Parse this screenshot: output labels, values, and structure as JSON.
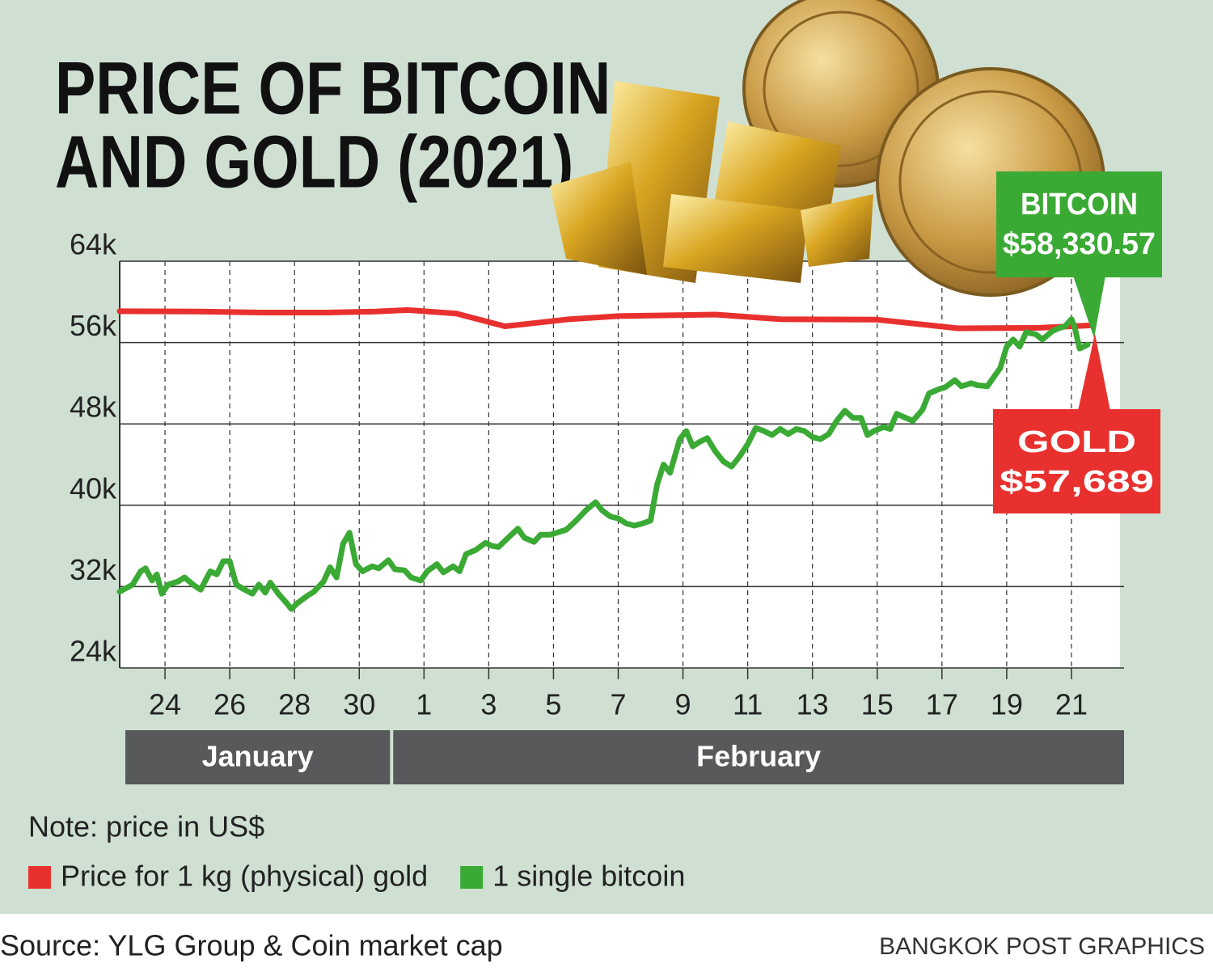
{
  "chart_data": {
    "type": "line",
    "title": [
      "PRICE OF BITCOIN",
      "AND GOLD (2021)"
    ],
    "note": "Note: price in US$",
    "source": "Source: YLG Group & Coin market cap",
    "credit": "BANGKOK POST GRAPHICS",
    "months": [
      "January",
      "February"
    ],
    "xlim": [
      22.6,
      53.5
    ],
    "xticks": [
      24,
      26,
      28,
      30,
      {
        "value": 32,
        "label": "1"
      },
      {
        "value": 34,
        "label": "3"
      },
      {
        "value": 36,
        "label": "5"
      },
      {
        "value": 38,
        "label": "7"
      },
      {
        "value": 40,
        "label": "9"
      },
      {
        "value": 42,
        "label": "11"
      },
      {
        "value": 44,
        "label": "13"
      },
      {
        "value": 46,
        "label": "15"
      },
      {
        "value": 48,
        "label": "17"
      },
      {
        "value": 50,
        "label": "19"
      },
      {
        "value": 52,
        "label": "21"
      }
    ],
    "ylim": [
      24000,
      64000
    ],
    "yticks": [
      {
        "value": 24000,
        "label": "24k"
      },
      {
        "value": 32000,
        "label": "32k"
      },
      {
        "value": 40000,
        "label": "40k"
      },
      {
        "value": 48000,
        "label": "48k"
      },
      {
        "value": 56000,
        "label": "56k"
      },
      {
        "value": 64000,
        "label": "64k"
      }
    ],
    "grid": true,
    "series": [
      {
        "name": "Price for 1 kg (physical) gold",
        "color": "#e8312f",
        "x": [
          22.6,
          25,
          27,
          29,
          30.5,
          31.5,
          33,
          34.5,
          36.5,
          38,
          41,
          43,
          46,
          48.5,
          51,
          52.6
        ],
        "values": [
          59080,
          59050,
          58950,
          58950,
          59050,
          59200,
          58850,
          57600,
          58300,
          58600,
          58750,
          58300,
          58250,
          57400,
          57450,
          57689
        ]
      },
      {
        "name": "1 single bitcoin",
        "color": "#3aaa35",
        "x": [
          22.6,
          23.0,
          23.25,
          23.4,
          23.6,
          23.75,
          23.9,
          24.1,
          24.4,
          24.6,
          24.9,
          25.1,
          25.4,
          25.6,
          25.8,
          26.0,
          26.2,
          26.4,
          26.7,
          26.9,
          27.1,
          27.25,
          27.5,
          27.75,
          27.9,
          28.1,
          28.4,
          28.6,
          28.9,
          29.1,
          29.3,
          29.5,
          29.7,
          29.9,
          30.1,
          30.4,
          30.6,
          30.9,
          31.1,
          31.4,
          31.6,
          31.9,
          32.1,
          32.4,
          32.6,
          32.9,
          33.1,
          33.3,
          33.6,
          33.9,
          34.1,
          34.3,
          34.6,
          34.9,
          35.1,
          35.4,
          35.6,
          35.9,
          36.1,
          36.4,
          36.7,
          37.0,
          37.3,
          37.5,
          37.75,
          38.0,
          38.25,
          38.5,
          38.75,
          39.0,
          39.2,
          39.4,
          39.6,
          39.9,
          40.1,
          40.3,
          40.5,
          40.75,
          41.0,
          41.25,
          41.5,
          41.75,
          42.0,
          42.25,
          42.5,
          42.75,
          43.0,
          43.25,
          43.5,
          43.75,
          44.0,
          44.25,
          44.5,
          44.75,
          45.0,
          45.25,
          45.5,
          45.7,
          45.9,
          46.2,
          46.4,
          46.6,
          46.8,
          47.1,
          47.4,
          47.6,
          47.9,
          48.1,
          48.4,
          48.6,
          48.9,
          49.1,
          49.4,
          49.6,
          49.8,
          50.0,
          50.2,
          50.4,
          50.6,
          50.9,
          51.1,
          51.4,
          51.6,
          51.8,
          52.0,
          52.1,
          52.25,
          52.5
        ],
        "values": [
          31500,
          32200,
          33500,
          33800,
          32600,
          33200,
          31300,
          32200,
          32500,
          32900,
          32100,
          31700,
          33500,
          33200,
          34500,
          34500,
          32200,
          31800,
          31300,
          32200,
          31400,
          32400,
          31300,
          30400,
          29800,
          30400,
          31100,
          31500,
          32500,
          33900,
          32900,
          36200,
          37300,
          34200,
          33500,
          34000,
          33800,
          34600,
          33700,
          33600,
          32900,
          32600,
          33500,
          34200,
          33400,
          34000,
          33500,
          35200,
          35600,
          36300,
          36000,
          35900,
          36800,
          37700,
          36800,
          36400,
          37100,
          37100,
          37300,
          37600,
          38500,
          39500,
          40300,
          39500,
          38900,
          38700,
          38200,
          38000,
          38200,
          38500,
          42000,
          44000,
          43200,
          46500,
          47300,
          45800,
          46200,
          46600,
          45300,
          44300,
          43800,
          44800,
          46000,
          47600,
          47300,
          46900,
          47500,
          47000,
          47500,
          47300,
          46700,
          46500,
          47000,
          48300,
          49300,
          48600,
          48600,
          46900,
          47300,
          47700,
          47500,
          49000,
          48700,
          48300,
          49400,
          51000,
          51400,
          51600,
          52300,
          51700,
          52000,
          51800,
          51700,
          52600,
          53500,
          55600,
          56300,
          55600,
          57000,
          56800,
          56300,
          57100,
          57400,
          57600,
          58300,
          57500,
          55400,
          55800
        ]
      }
    ],
    "annotations": [
      {
        "title": "BITCOIN",
        "text": "$58,330.57",
        "color": "#3aaa35"
      },
      {
        "title": "GOLD",
        "text": "$57,689",
        "color": "#e8312f"
      }
    ]
  }
}
